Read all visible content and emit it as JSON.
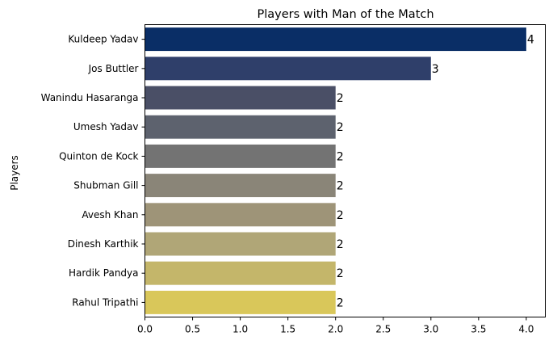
{
  "chart_data": {
    "type": "bar",
    "orientation": "horizontal",
    "title": "Players with Man of the Match",
    "xlabel": "",
    "ylabel": "Players",
    "xlim": [
      0,
      4.2
    ],
    "xticks": [
      "0.0",
      "0.5",
      "1.0",
      "1.5",
      "2.0",
      "2.5",
      "3.0",
      "3.5",
      "4.0"
    ],
    "grid": false,
    "categories": [
      "Kuldeep Yadav",
      "Jos Buttler",
      "Wanindu Hasaranga",
      "Umesh Yadav",
      "Quinton de Kock",
      "Shubman Gill",
      "Avesh Khan",
      "Dinesh Karthik",
      "Hardik Pandya",
      "Rahul Tripathi"
    ],
    "values": [
      4,
      3,
      2,
      2,
      2,
      2,
      2,
      2,
      2,
      2
    ],
    "colors": [
      "#0a2e66",
      "#2f3f6a",
      "#4a4f66",
      "#5d626e",
      "#737373",
      "#8a8578",
      "#9e9478",
      "#b0a677",
      "#c4b66a",
      "#d9c75a"
    ]
  }
}
